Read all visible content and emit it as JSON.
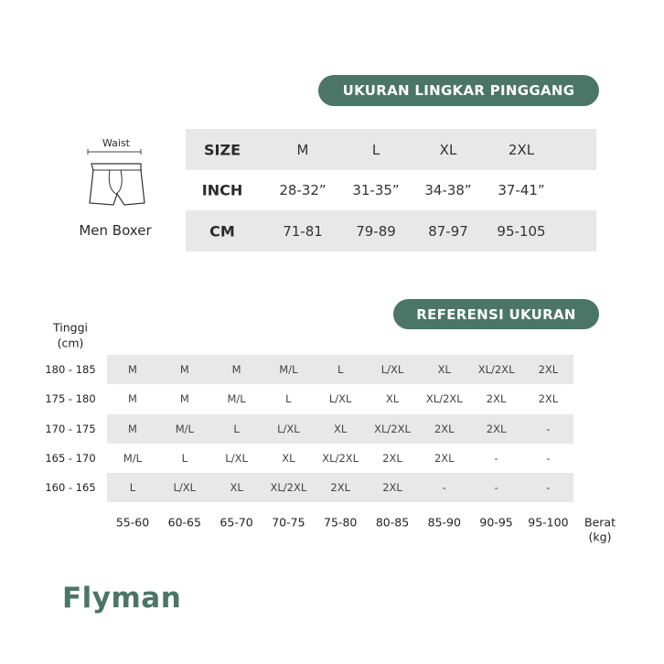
{
  "colors": {
    "accent": "#4b7567",
    "band": "#e8e8e8"
  },
  "waist_chart": {
    "title": "UKURAN LINGKAR PINGGANG",
    "illustration": {
      "label": "Waist",
      "caption": "Men Boxer",
      "icon": "boxer-briefs-icon"
    },
    "rows": [
      {
        "label": "SIZE",
        "values": [
          "M",
          "L",
          "XL",
          "2XL"
        ]
      },
      {
        "label": "INCH",
        "values": [
          "28-32”",
          "31-35”",
          "34-38”",
          "37-41”"
        ]
      },
      {
        "label": "CM",
        "values": [
          "71-81",
          "79-89",
          "87-97",
          "95-105"
        ]
      }
    ]
  },
  "reference_chart": {
    "title": "REFERENSI UKURAN",
    "row_axis_label": [
      "Tinggi",
      "(cm)"
    ],
    "col_axis_label": [
      "Berat",
      "(kg)"
    ],
    "weights": [
      "55-60",
      "60-65",
      "65-70",
      "70-75",
      "75-80",
      "80-85",
      "85-90",
      "90-95",
      "95-100"
    ],
    "rows": [
      {
        "height": "180 - 185",
        "sizes": [
          "M",
          "M",
          "M",
          "M/L",
          "L",
          "L/XL",
          "XL",
          "XL/2XL",
          "2XL"
        ]
      },
      {
        "height": "175 - 180",
        "sizes": [
          "M",
          "M",
          "M/L",
          "L",
          "L/XL",
          "XL",
          "XL/2XL",
          "2XL",
          "2XL"
        ]
      },
      {
        "height": "170 - 175",
        "sizes": [
          "M",
          "M/L",
          "L",
          "L/XL",
          "XL",
          "XL/2XL",
          "2XL",
          "2XL",
          "-"
        ]
      },
      {
        "height": "165 - 170",
        "sizes": [
          "M/L",
          "L",
          "L/XL",
          "XL",
          "XL/2XL",
          "2XL",
          "2XL",
          "-",
          "-"
        ]
      },
      {
        "height": "160 - 165",
        "sizes": [
          "L",
          "L/XL",
          "XL",
          "XL/2XL",
          "2XL",
          "2XL",
          "-",
          "-",
          "-"
        ]
      }
    ]
  },
  "brand": {
    "logo": "Flyman"
  }
}
